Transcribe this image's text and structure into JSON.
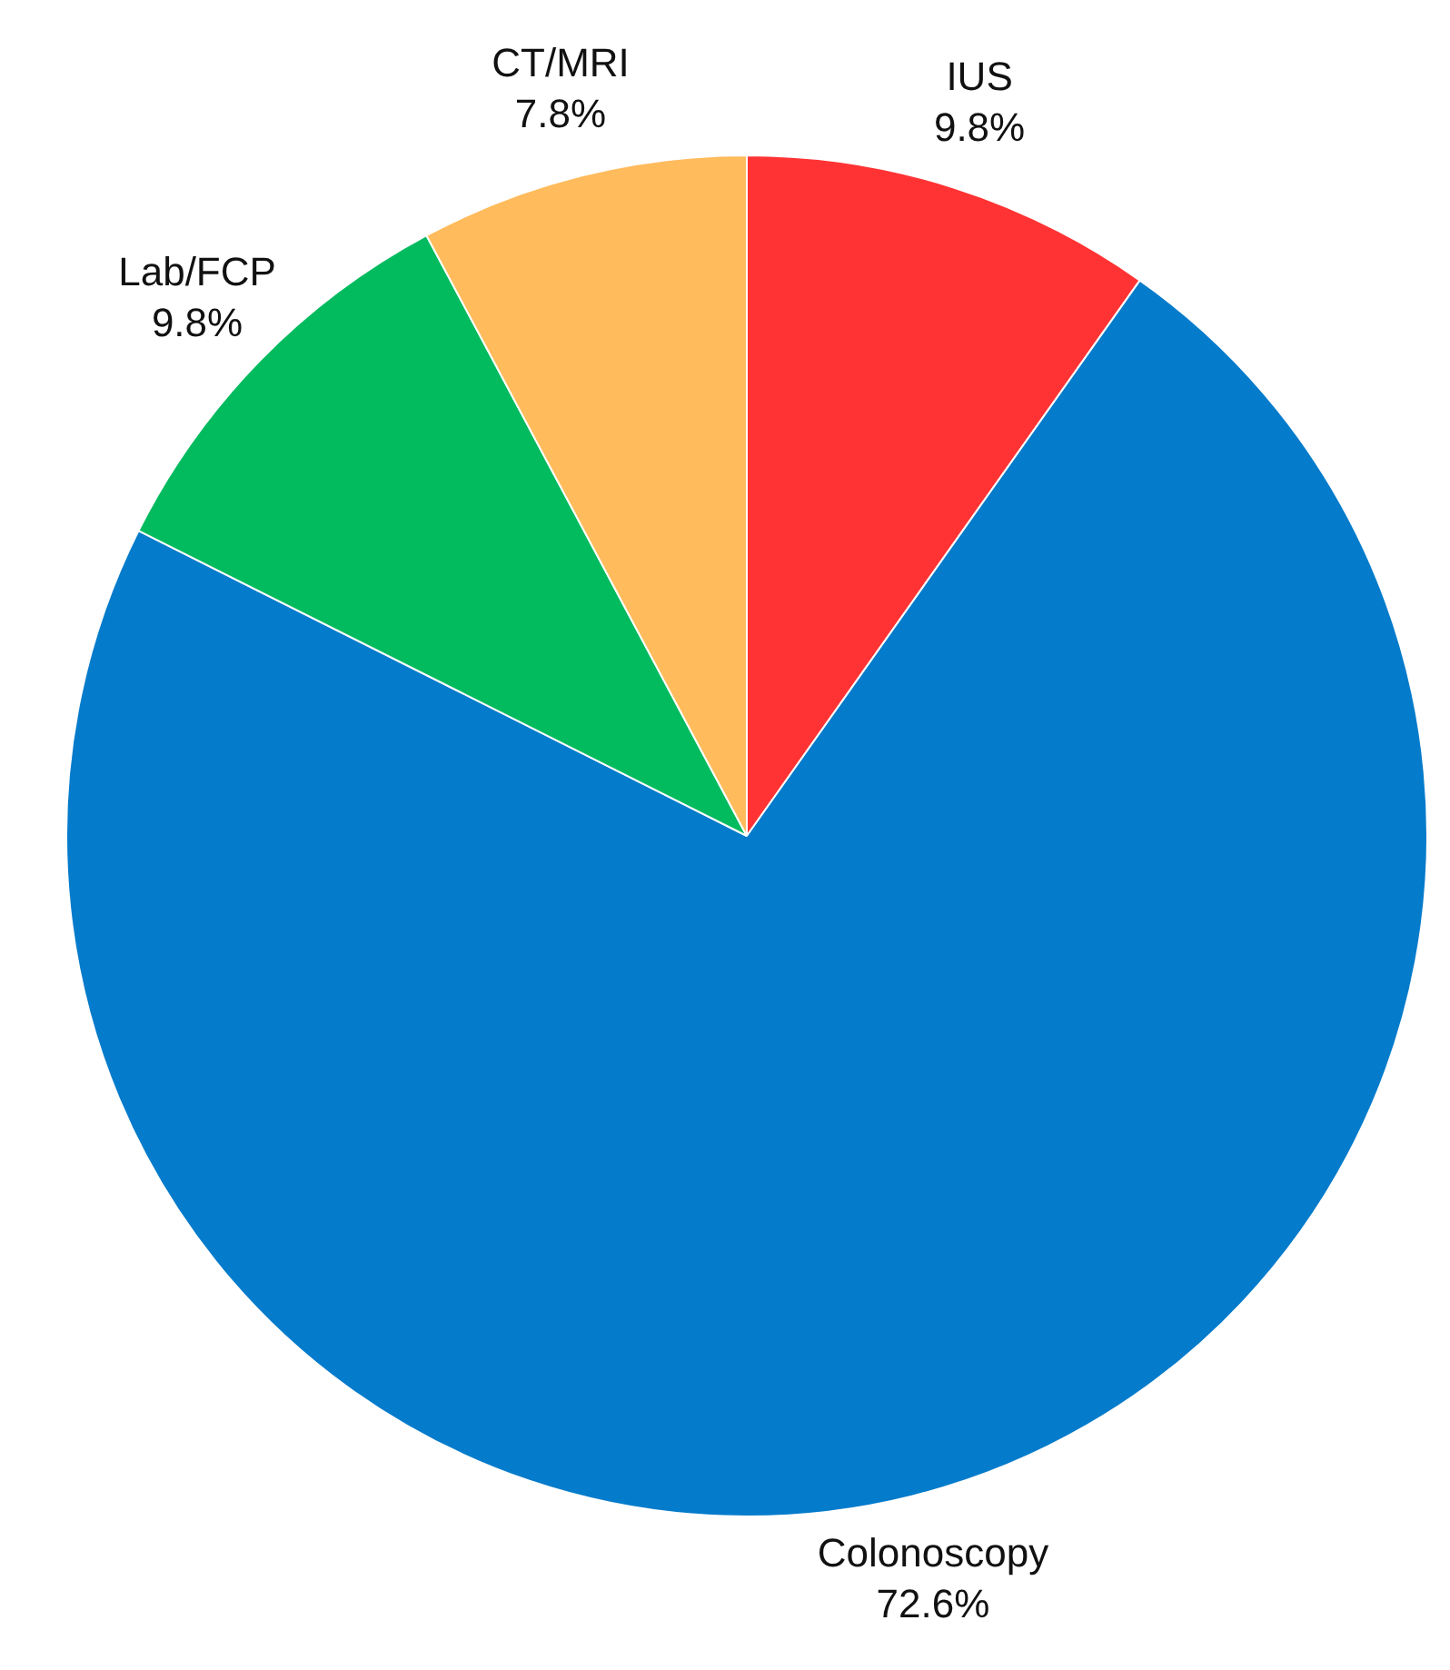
{
  "chart_data": {
    "type": "pie",
    "categories": [
      "IUS",
      "Colonoscopy",
      "Lab/FCP",
      "CT/MRI"
    ],
    "values": [
      9.8,
      72.6,
      9.8,
      7.8
    ],
    "colors": [
      "#ff3334",
      "#057bcb",
      "#03bb5f",
      "#ffbb5c"
    ],
    "value_labels": [
      "9.8%",
      "72.6%",
      "9.8%",
      "7.8%"
    ],
    "legend": false
  }
}
